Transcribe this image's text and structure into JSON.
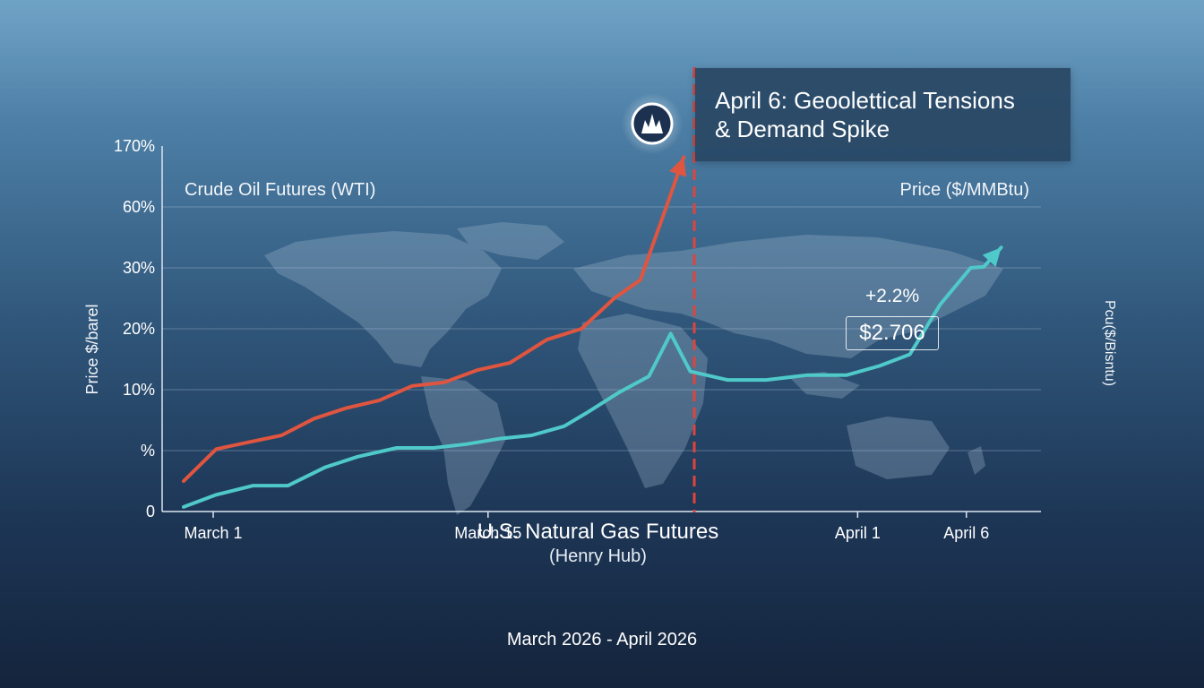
{
  "chart_data": {
    "type": "line",
    "x": [
      "March 1",
      "March 15",
      "April 1",
      "April 6"
    ],
    "left_axis": {
      "label": "Price $/barel",
      "ticks": [
        "170%",
        "60%",
        "30%",
        "20%",
        "10%",
        "%",
        "0"
      ]
    },
    "right_axis": {
      "label": "Price ($/MMBtu)",
      "rotated_label": "Pcu($/Bisntu)"
    },
    "series": [
      {
        "name": "Crude Oil Futures (WTI)",
        "color": "#e0553f",
        "values": [
          {
            "t": 0.0,
            "v": 1.0
          },
          {
            "t": 1.5,
            "v": 2.2
          },
          {
            "t": 3.0,
            "v": 3.1
          },
          {
            "t": 4.5,
            "v": 4.0
          },
          {
            "t": 6.0,
            "v": 6.2
          },
          {
            "t": 7.5,
            "v": 7.6
          },
          {
            "t": 9.0,
            "v": 8.6
          },
          {
            "t": 10.5,
            "v": 10.6
          },
          {
            "t": 12.0,
            "v": 11.2
          },
          {
            "t": 13.5,
            "v": 13.2
          },
          {
            "t": 15.0,
            "v": 14.4
          },
          {
            "t": 16.7,
            "v": 18.2
          },
          {
            "t": 18.3,
            "v": 20.0
          },
          {
            "t": 19.8,
            "v": 25.0
          },
          {
            "t": 21.0,
            "v": 28.0
          },
          {
            "t": 22.2,
            "v": 60.0
          },
          {
            "t": 23.0,
            "v": 150.0
          }
        ]
      },
      {
        "name": "U.S. Natural Gas Futures",
        "subtitle": "(Henry Hub)",
        "color": "#4fc9c9",
        "values": [
          {
            "t": 0.0,
            "v": 0.15
          },
          {
            "t": 1.5,
            "v": 0.55
          },
          {
            "t": 3.2,
            "v": 0.85
          },
          {
            "t": 4.8,
            "v": 0.85
          },
          {
            "t": 6.5,
            "v": 1.45
          },
          {
            "t": 8.0,
            "v": 1.8
          },
          {
            "t": 9.8,
            "v": 2.35
          },
          {
            "t": 11.5,
            "v": 2.35
          },
          {
            "t": 13.0,
            "v": 2.85
          },
          {
            "t": 14.5,
            "v": 3.55
          },
          {
            "t": 16.0,
            "v": 4.0
          },
          {
            "t": 17.5,
            "v": 5.2
          },
          {
            "t": 18.5,
            "v": 6.9
          },
          {
            "t": 20.0,
            "v": 9.6
          },
          {
            "t": 21.4,
            "v": 12.2
          },
          {
            "t": 22.4,
            "v": 19.2
          },
          {
            "t": 23.3,
            "v": 13.0
          },
          {
            "t": 25.0,
            "v": 11.6
          },
          {
            "t": 26.8,
            "v": 11.6
          },
          {
            "t": 28.7,
            "v": 12.4
          },
          {
            "t": 30.5,
            "v": 12.4
          },
          {
            "t": 32.0,
            "v": 13.9
          },
          {
            "t": 33.4,
            "v": 15.8
          },
          {
            "t": 34.8,
            "v": 24.0
          },
          {
            "t": 36.2,
            "v": 30.0
          },
          {
            "t": 36.8,
            "v": 30.5
          },
          {
            "t": 37.6,
            "v": 40.0
          }
        ]
      }
    ],
    "event": {
      "date_index": 22.2,
      "title": "April 6: Geoolettical Tensions\n& Demand Spike",
      "marker_icon": "explosion-icon",
      "line_color": "#e0443a"
    },
    "callout": {
      "change": "+2.2%",
      "price": "$2.706"
    },
    "date_range": "March 2026 - April 2026",
    "grid": true
  },
  "background_icon": "world-map"
}
